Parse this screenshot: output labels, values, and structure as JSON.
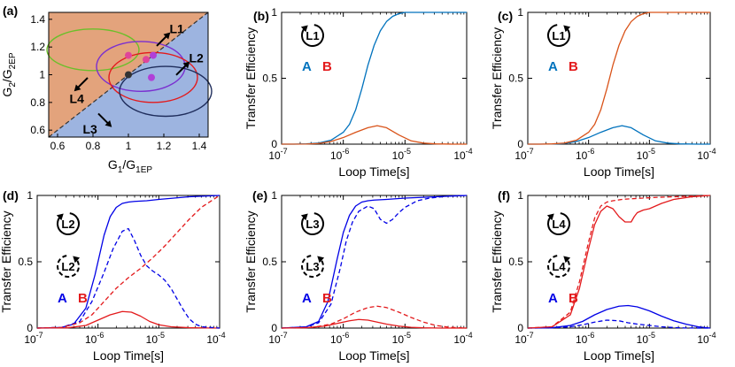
{
  "colors": {
    "blue": "#0072BD",
    "orange": "#D95319",
    "nblue": "#0000E6",
    "nred": "#E31A1C",
    "orange_region": "#E3A37C",
    "blue_region": "#9DB4E0"
  },
  "chart_data": [
    {
      "panel": "(a)",
      "type": "scatter",
      "xlabel_base": "G",
      "xlabel_sub1": "1",
      "xlabel_mid": "/G",
      "xlabel_sub2": "1EP",
      "ylabel_base": "G",
      "ylabel_sub1": "2",
      "ylabel_mid": "/G",
      "ylabel_sub2": "2EP",
      "xlim": [
        0.55,
        1.45
      ],
      "ylim": [
        0.55,
        1.45
      ],
      "xticks": [
        0.6,
        0.8,
        1,
        1.2,
        1.4
      ],
      "xticklabels": [
        "0.6",
        "0.8",
        "1",
        "1.2",
        "1.4"
      ],
      "yticks": [
        0.6,
        0.8,
        1,
        1.2,
        1.4
      ],
      "yticklabels": [
        "0.6",
        "0.8",
        "1",
        "1.2",
        "1.4"
      ],
      "regions": [
        {
          "name": "above diagonal",
          "color": "#E3A37C"
        },
        {
          "name": "below diagonal",
          "color": "#9DB4E0"
        }
      ],
      "ellipses": [
        {
          "name": "green",
          "cx": 0.8,
          "cy": 1.18,
          "rx": 0.26,
          "ry": 0.15,
          "color": "#6BBF2A"
        },
        {
          "name": "purple",
          "cx": 1.07,
          "cy": 1.06,
          "rx": 0.25,
          "ry": 0.18,
          "color": "#7A2FD0"
        },
        {
          "name": "red",
          "cx": 1.14,
          "cy": 0.98,
          "rx": 0.25,
          "ry": 0.18,
          "color": "#E31A1C"
        },
        {
          "name": "navy",
          "cx": 1.21,
          "cy": 0.88,
          "rx": 0.26,
          "ry": 0.18,
          "color": "#1F2D5C"
        }
      ],
      "points": [
        {
          "x": 1.0,
          "y": 1.14,
          "color": "#E0459A"
        },
        {
          "x": 1.1,
          "y": 1.11,
          "color": "#E0459A"
        },
        {
          "x": 1.14,
          "y": 1.14,
          "color": "#B040D8"
        },
        {
          "x": 1.0,
          "y": 1.0,
          "color": "#333333"
        },
        {
          "x": 1.13,
          "y": 0.98,
          "color": "#B040D8"
        }
      ],
      "annotations": [
        {
          "text": "L1",
          "x": 1.26,
          "y": 1.31,
          "dir": "up-right"
        },
        {
          "text": "L2",
          "x": 1.37,
          "y": 1.1,
          "dir": "up-right"
        },
        {
          "text": "L3",
          "x": 0.94,
          "y": 0.63,
          "dir": "down-right"
        },
        {
          "text": "L4",
          "x": 0.67,
          "y": 0.85,
          "dir": "down-left"
        }
      ]
    },
    {
      "panel": "(b)",
      "type": "line",
      "loop": "L1",
      "loop_dir": "cw",
      "xlabel": "Loop Time[s]",
      "ylabel": "Transfer Efficiency",
      "xlim": [
        -7,
        -4
      ],
      "ylim": [
        0,
        1
      ],
      "x_log10": true,
      "xticks": [
        -7,
        -6,
        -5,
        -4
      ],
      "xticklabels": [
        "10",
        "10",
        "10",
        "10"
      ],
      "xtickexps": [
        "-7",
        "-6",
        "-5",
        "-4"
      ],
      "yticks": [
        0,
        0.5,
        1
      ],
      "yticklabels": [
        "0",
        "0.5",
        "1"
      ],
      "legend": [
        {
          "text": "A",
          "color": "#0072BD"
        },
        {
          "text": "B",
          "color": "#E31A1C"
        }
      ],
      "series": [
        {
          "name": "A",
          "color": "#0072BD",
          "dash": "solid",
          "x": [
            -7,
            -6.8,
            -6.6,
            -6.4,
            -6.2,
            -6,
            -5.9,
            -5.8,
            -5.7,
            -5.6,
            -5.5,
            -5.4,
            -5.3,
            -5.2,
            -5.1,
            -5,
            -4.8,
            -4.6,
            -4.4,
            -4.2,
            -4
          ],
          "y": [
            0,
            0,
            0.002,
            0.008,
            0.03,
            0.09,
            0.15,
            0.26,
            0.42,
            0.6,
            0.75,
            0.86,
            0.93,
            0.97,
            0.99,
            1,
            1,
            1,
            1,
            1,
            1
          ]
        },
        {
          "name": "B",
          "color": "#D95319",
          "dash": "solid",
          "x": [
            -7,
            -6.6,
            -6.4,
            -6.2,
            -6,
            -5.8,
            -5.6,
            -5.45,
            -5.3,
            -5.1,
            -4.9,
            -4.7,
            -4.5,
            -4.2,
            -4
          ],
          "y": [
            0,
            0.001,
            0.005,
            0.02,
            0.05,
            0.09,
            0.125,
            0.14,
            0.125,
            0.07,
            0.025,
            0.008,
            0.002,
            0,
            0
          ]
        }
      ]
    },
    {
      "panel": "(c)",
      "type": "line",
      "loop": "L1",
      "loop_dir": "ccw",
      "xlabel": "Loop Time[s]",
      "ylabel": "Transfer Efficiency",
      "xlim": [
        -7,
        -4
      ],
      "ylim": [
        0,
        1
      ],
      "x_log10": true,
      "xticks": [
        -7,
        -6,
        -5,
        -4
      ],
      "xticklabels": [
        "10",
        "10",
        "10",
        "10"
      ],
      "xtickexps": [
        "-7",
        "-6",
        "-5",
        "-4"
      ],
      "yticks": [
        0,
        0.5,
        1
      ],
      "yticklabels": [
        "0",
        "0.5",
        "1"
      ],
      "legend": [
        {
          "text": "A",
          "color": "#0072BD"
        },
        {
          "text": "B",
          "color": "#E31A1C"
        }
      ],
      "series": [
        {
          "name": "A",
          "color": "#0072BD",
          "dash": "solid",
          "x": [
            -7,
            -6.6,
            -6.4,
            -6.2,
            -6,
            -5.8,
            -5.6,
            -5.45,
            -5.3,
            -5.1,
            -4.9,
            -4.7,
            -4.5,
            -4.2,
            -4
          ],
          "y": [
            0,
            0.001,
            0.005,
            0.02,
            0.05,
            0.09,
            0.125,
            0.14,
            0.125,
            0.07,
            0.025,
            0.008,
            0.002,
            0,
            0
          ]
        },
        {
          "name": "B",
          "color": "#D95319",
          "dash": "solid",
          "x": [
            -7,
            -6.8,
            -6.6,
            -6.4,
            -6.2,
            -6,
            -5.9,
            -5.8,
            -5.7,
            -5.6,
            -5.5,
            -5.4,
            -5.3,
            -5.2,
            -5.1,
            -5,
            -4.8,
            -4.6,
            -4.4,
            -4.2,
            -4
          ],
          "y": [
            0,
            0,
            0.002,
            0.008,
            0.03,
            0.09,
            0.15,
            0.26,
            0.42,
            0.6,
            0.75,
            0.86,
            0.93,
            0.97,
            0.99,
            1,
            1,
            1,
            1,
            1,
            1
          ]
        }
      ]
    },
    {
      "panel": "(d)",
      "type": "line",
      "loop": "L2",
      "loop_dir": "cw",
      "xlabel": "Loop Time[s]",
      "ylabel": "Transfer Efficiency",
      "xlim": [
        -7,
        -4
      ],
      "ylim": [
        0,
        1
      ],
      "x_log10": true,
      "xticks": [
        -7,
        -6,
        -5,
        -4
      ],
      "xticklabels": [
        "10",
        "10",
        "10",
        "10"
      ],
      "xtickexps": [
        "-7",
        "-6",
        "-5",
        "-4"
      ],
      "yticks": [
        0,
        0.5,
        1
      ],
      "yticklabels": [
        "0",
        "0.5",
        "1"
      ],
      "legend": [
        {
          "text": "A",
          "color": "#0000E6"
        },
        {
          "text": "B",
          "color": "#E31A1C"
        }
      ],
      "series": [
        {
          "name": "A",
          "color": "#0000E6",
          "dash": "solid",
          "x": [
            -7,
            -6.6,
            -6.4,
            -6.2,
            -6.05,
            -5.9,
            -5.8,
            -5.7,
            -5.6,
            -5.5,
            -5.4,
            -5.2,
            -5,
            -4.5,
            -4
          ],
          "y": [
            0,
            0.005,
            0.03,
            0.15,
            0.4,
            0.7,
            0.84,
            0.91,
            0.94,
            0.95,
            0.955,
            0.96,
            0.97,
            0.99,
            1
          ]
        },
        {
          "name": "B",
          "color": "#E31A1C",
          "dash": "solid",
          "x": [
            -7,
            -6.5,
            -6.2,
            -6,
            -5.8,
            -5.6,
            -5.45,
            -5.3,
            -5.15,
            -5,
            -4.8,
            -4.5,
            -4.2,
            -4
          ],
          "y": [
            0,
            0.002,
            0.02,
            0.06,
            0.1,
            0.125,
            0.12,
            0.09,
            0.05,
            0.025,
            0.01,
            0.003,
            0.001,
            0
          ]
        },
        {
          "name": "A (reverse)",
          "color": "#0000E6",
          "dash": "dashed",
          "x": [
            -7,
            -6.6,
            -6.3,
            -6.1,
            -5.9,
            -5.75,
            -5.6,
            -5.5,
            -5.4,
            -5.3,
            -5.2,
            -5.1,
            -5,
            -4.9,
            -4.8,
            -4.7,
            -4.6,
            -4.5,
            -4.4,
            -4.3,
            -4
          ],
          "y": [
            0,
            0.005,
            0.05,
            0.2,
            0.42,
            0.6,
            0.73,
            0.75,
            0.66,
            0.55,
            0.47,
            0.43,
            0.4,
            0.36,
            0.3,
            0.22,
            0.14,
            0.07,
            0.03,
            0.01,
            0
          ]
        },
        {
          "name": "B (reverse)",
          "color": "#E31A1C",
          "dash": "dashed",
          "x": [
            -7,
            -6.6,
            -6.3,
            -6.1,
            -5.9,
            -5.7,
            -5.5,
            -5.3,
            -5.1,
            -4.9,
            -4.7,
            -4.5,
            -4.3,
            -4.1,
            -4
          ],
          "y": [
            0,
            0.005,
            0.04,
            0.1,
            0.2,
            0.3,
            0.38,
            0.45,
            0.53,
            0.62,
            0.72,
            0.82,
            0.91,
            0.97,
            1
          ]
        }
      ]
    },
    {
      "panel": "(e)",
      "type": "line",
      "loop": "L3",
      "loop_dir": "cw",
      "xlabel": "Loop Time[s]",
      "ylabel": "Transfer Efficiency",
      "xlim": [
        -7,
        -4
      ],
      "ylim": [
        0,
        1
      ],
      "x_log10": true,
      "xticks": [
        -7,
        -6,
        -5,
        -4
      ],
      "xticklabels": [
        "10",
        "10",
        "10",
        "10"
      ],
      "xtickexps": [
        "-7",
        "-6",
        "-5",
        "-4"
      ],
      "yticks": [
        0,
        0.5,
        1
      ],
      "yticklabels": [
        "0",
        "0.5",
        "1"
      ],
      "legend": [
        {
          "text": "A",
          "color": "#0000E6"
        },
        {
          "text": "B",
          "color": "#E31A1C"
        }
      ],
      "series": [
        {
          "name": "A",
          "color": "#0000E6",
          "dash": "solid",
          "x": [
            -7,
            -6.6,
            -6.4,
            -6.25,
            -6.1,
            -6,
            -5.9,
            -5.8,
            -5.7,
            -5.6,
            -5.5,
            -5.3,
            -5,
            -4.5,
            -4
          ],
          "y": [
            0,
            0.01,
            0.05,
            0.2,
            0.52,
            0.72,
            0.85,
            0.92,
            0.95,
            0.96,
            0.965,
            0.97,
            0.98,
            0.99,
            1
          ]
        },
        {
          "name": "B",
          "color": "#E31A1C",
          "dash": "solid",
          "x": [
            -7,
            -6.6,
            -6.3,
            -6.1,
            -5.9,
            -5.75,
            -5.6,
            -5.45,
            -5.3,
            -5.1,
            -4.9,
            -4.7,
            -4.4,
            -4
          ],
          "y": [
            0,
            0.003,
            0.015,
            0.035,
            0.055,
            0.065,
            0.06,
            0.045,
            0.03,
            0.015,
            0.006,
            0.002,
            0,
            0
          ]
        },
        {
          "name": "A (reverse)",
          "color": "#0000E6",
          "dash": "dashed",
          "x": [
            -7,
            -6.6,
            -6.4,
            -6.2,
            -6.05,
            -5.95,
            -5.85,
            -5.75,
            -5.6,
            -5.5,
            -5.4,
            -5.3,
            -5.2,
            -5.1,
            -5,
            -4.8,
            -4.6,
            -4.3,
            -4
          ],
          "y": [
            0,
            0.008,
            0.04,
            0.18,
            0.45,
            0.66,
            0.8,
            0.88,
            0.92,
            0.9,
            0.82,
            0.79,
            0.82,
            0.87,
            0.91,
            0.96,
            0.98,
            0.995,
            1
          ]
        },
        {
          "name": "B (reverse)",
          "color": "#E31A1C",
          "dash": "dashed",
          "x": [
            -7,
            -6.5,
            -6.2,
            -6,
            -5.8,
            -5.6,
            -5.45,
            -5.3,
            -5.1,
            -4.9,
            -4.7,
            -4.5,
            -4.3,
            -4
          ],
          "y": [
            0,
            0.005,
            0.03,
            0.07,
            0.12,
            0.155,
            0.165,
            0.155,
            0.12,
            0.08,
            0.045,
            0.02,
            0.007,
            0
          ]
        }
      ]
    },
    {
      "panel": "(f)",
      "type": "line",
      "loop": "L4",
      "loop_dir": "cw",
      "xlabel": "Loop Time[s]",
      "ylabel": "Transfer Efficiency",
      "xlim": [
        -7,
        -4
      ],
      "ylim": [
        0,
        1
      ],
      "x_log10": true,
      "xticks": [
        -7,
        -6,
        -5,
        -4
      ],
      "xticklabels": [
        "10",
        "10",
        "10",
        "10"
      ],
      "xtickexps": [
        "-7",
        "-6",
        "-5",
        "-4"
      ],
      "yticks": [
        0,
        0.5,
        1
      ],
      "yticklabels": [
        "0",
        "0.5",
        "1"
      ],
      "legend": [
        {
          "text": "A",
          "color": "#0000E6"
        },
        {
          "text": "B",
          "color": "#E31A1C"
        }
      ],
      "series": [
        {
          "name": "A",
          "color": "#0000E6",
          "dash": "solid",
          "x": [
            -7,
            -6.6,
            -6.3,
            -6.1,
            -5.9,
            -5.7,
            -5.5,
            -5.35,
            -5.2,
            -5,
            -4.8,
            -4.6,
            -4.4,
            -4.2,
            -4
          ],
          "y": [
            0,
            0.003,
            0.02,
            0.05,
            0.1,
            0.14,
            0.165,
            0.17,
            0.16,
            0.13,
            0.09,
            0.055,
            0.03,
            0.01,
            0
          ]
        },
        {
          "name": "B",
          "color": "#E31A1C",
          "dash": "solid",
          "x": [
            -7,
            -6.6,
            -6.3,
            -6.15,
            -6,
            -5.9,
            -5.8,
            -5.7,
            -5.6,
            -5.5,
            -5.4,
            -5.3,
            -5.25,
            -5.2,
            -5.1,
            -5,
            -4.8,
            -4.6,
            -4.3,
            -4
          ],
          "y": [
            0,
            0.01,
            0.1,
            0.3,
            0.6,
            0.78,
            0.88,
            0.92,
            0.9,
            0.84,
            0.8,
            0.8,
            0.84,
            0.87,
            0.89,
            0.9,
            0.94,
            0.97,
            0.99,
            1
          ]
        },
        {
          "name": "A (reverse)",
          "color": "#0000E6",
          "dash": "dashed",
          "x": [
            -7,
            -6.6,
            -6.3,
            -6.1,
            -5.9,
            -5.7,
            -5.5,
            -5.35,
            -5.2,
            -5,
            -4.8,
            -4.6,
            -4.4,
            -4
          ],
          "y": [
            0,
            0.002,
            0.01,
            0.025,
            0.045,
            0.06,
            0.055,
            0.04,
            0.03,
            0.02,
            0.01,
            0.004,
            0.001,
            0
          ]
        },
        {
          "name": "B (reverse)",
          "color": "#E31A1C",
          "dash": "dashed",
          "x": [
            -7,
            -6.6,
            -6.3,
            -6.15,
            -6,
            -5.9,
            -5.8,
            -5.7,
            -5.6,
            -5.45,
            -5.3,
            -5.1,
            -4.9,
            -4.6,
            -4.3,
            -4
          ],
          "y": [
            0,
            0.01,
            0.12,
            0.35,
            0.65,
            0.83,
            0.92,
            0.95,
            0.96,
            0.97,
            0.975,
            0.98,
            0.985,
            0.99,
            0.995,
            1
          ]
        }
      ]
    }
  ]
}
